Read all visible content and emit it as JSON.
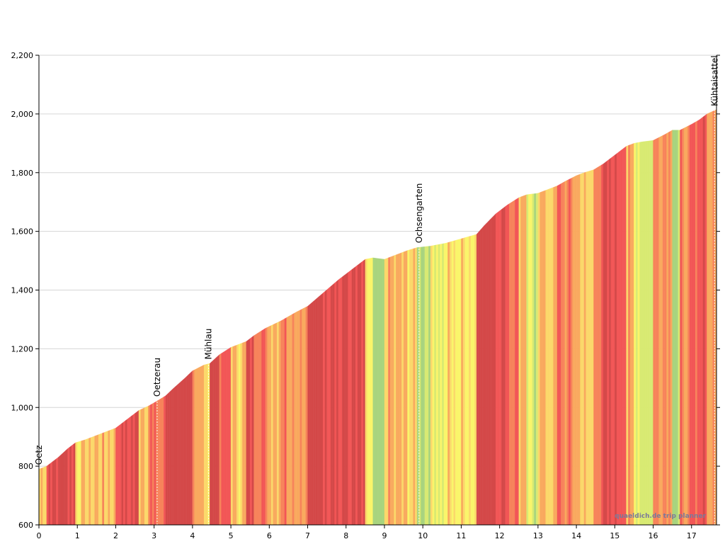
{
  "chart_data": {
    "type": "area",
    "title": "",
    "xlabel": "",
    "ylabel": "",
    "xlim": [
      0,
      17.65
    ],
    "ylim": [
      600,
      2200
    ],
    "x_ticks": [
      0,
      1,
      2,
      3,
      4,
      5,
      6,
      7,
      8,
      9,
      10,
      11,
      12,
      13,
      14,
      15,
      16,
      17
    ],
    "y_ticks": [
      600,
      800,
      1000,
      1200,
      1400,
      1600,
      1800,
      2000,
      2200
    ],
    "y_tick_labels": [
      "600",
      "800",
      "1,000",
      "1,200",
      "1,400",
      "1,600",
      "1,800",
      "2,000",
      "2,200"
    ],
    "grid": true,
    "profile": {
      "x": [
        0,
        0.2,
        0.5,
        0.75,
        0.95,
        1.2,
        1.5,
        1.8,
        2.0,
        2.3,
        2.6,
        2.85,
        3.05,
        3.3,
        3.5,
        3.8,
        4.0,
        4.3,
        4.45,
        4.7,
        5.0,
        5.4,
        5.6,
        5.9,
        6.3,
        6.7,
        7.0,
        7.4,
        7.8,
        8.2,
        8.5,
        8.7,
        9.0,
        9.3,
        9.6,
        9.85,
        10.2,
        10.6,
        11.0,
        11.4,
        11.6,
        11.9,
        12.2,
        12.5,
        12.7,
        13.0,
        13.2,
        13.5,
        13.7,
        14.0,
        14.2,
        14.45,
        14.7,
        15.0,
        15.3,
        15.5,
        15.7,
        16.0,
        16.3,
        16.5,
        16.7,
        17.0,
        17.2,
        17.4,
        17.65
      ],
      "elevation": [
        790,
        800,
        830,
        860,
        880,
        890,
        905,
        920,
        930,
        960,
        990,
        1005,
        1020,
        1040,
        1065,
        1100,
        1125,
        1145,
        1150,
        1180,
        1205,
        1225,
        1245,
        1270,
        1295,
        1325,
        1345,
        1390,
        1435,
        1475,
        1505,
        1510,
        1505,
        1520,
        1535,
        1545,
        1550,
        1560,
        1575,
        1590,
        1620,
        1660,
        1690,
        1715,
        1725,
        1730,
        1740,
        1755,
        1770,
        1790,
        1800,
        1810,
        1830,
        1860,
        1890,
        1900,
        1905,
        1910,
        1930,
        1945,
        1945,
        1965,
        1980,
        2000,
        2015
      ]
    },
    "gradient_color_scale": {
      "flat": "#a8d47e",
      "gentle": "#d8ea72",
      "light": "#faf56a",
      "moderate": "#fbd86a",
      "medium": "#f9a95e",
      "steep": "#f7835a",
      "very_steep": "#f25656",
      "extreme": "#d44848"
    },
    "markers": [
      {
        "name": "Oetz",
        "km": 0.0
      },
      {
        "name": "Oetzerau",
        "km": 3.08
      },
      {
        "name": "Mühlau",
        "km": 4.42
      },
      {
        "name": "Ochsengarten",
        "km": 9.9
      },
      {
        "name": "Kühtaisattel",
        "km": 17.6
      }
    ],
    "annotations": [
      "quaeldich.de trip planner"
    ]
  }
}
